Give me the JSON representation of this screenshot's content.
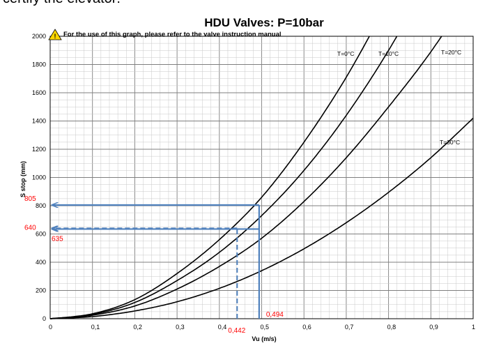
{
  "page": {
    "top_caption": "certify the elevator:"
  },
  "chart_data": {
    "type": "line",
    "title": "HDU Valves: P=10bar",
    "subtitle": "For the use of this graph, please refer to the valve instruction manual",
    "xlabel": "Vu (m/s)",
    "ylabel": "S stop (mm)",
    "xlim": [
      0,
      1
    ],
    "ylim": [
      0,
      2000
    ],
    "x_ticks": [
      "0",
      "0,1",
      "0,2",
      "0,3",
      "0,4",
      "0,5",
      "0,6",
      "0,7",
      "0,8",
      "0,9",
      "1"
    ],
    "y_ticks": [
      "0",
      "200",
      "400",
      "600",
      "800",
      "1000",
      "1200",
      "1400",
      "1600",
      "1800",
      "2000"
    ],
    "grid": true,
    "x": [
      0,
      0.1,
      0.2,
      0.3,
      0.4,
      0.5,
      0.6,
      0.7,
      0.8,
      0.9,
      1.0
    ],
    "series": [
      {
        "name": "T=0°C",
        "values": [
          0,
          35,
          135,
          320,
          560,
          860,
          1250,
          1710,
          2250,
          null,
          null
        ]
      },
      {
        "name": "T=10°C",
        "values": [
          0,
          30,
          115,
          270,
          470,
          730,
          1050,
          1440,
          1900,
          2430,
          null
        ]
      },
      {
        "name": "T=20°C",
        "values": [
          0,
          25,
          90,
          210,
          370,
          570,
          830,
          1140,
          1500,
          1890,
          2340
        ]
      },
      {
        "name": "T=30°C",
        "values": [
          0,
          15,
          55,
          120,
          215,
          340,
          495,
          680,
          895,
          1140,
          1420
        ]
      }
    ],
    "annotations": [
      {
        "x": 0.494,
        "y": 805,
        "style": "solid",
        "x_label": "0,494",
        "y_label": "805"
      },
      {
        "x": 0.442,
        "y": 640,
        "style": "dashed",
        "x_label": "0,442",
        "y_label": "640"
      },
      {
        "y": 635,
        "style": "solid",
        "y_label": "635"
      }
    ],
    "colors": {
      "curve": "#000000",
      "annotation_line": "#4F81BD",
      "annotation_text": "#FF0000",
      "warning": "#FFD700"
    }
  }
}
